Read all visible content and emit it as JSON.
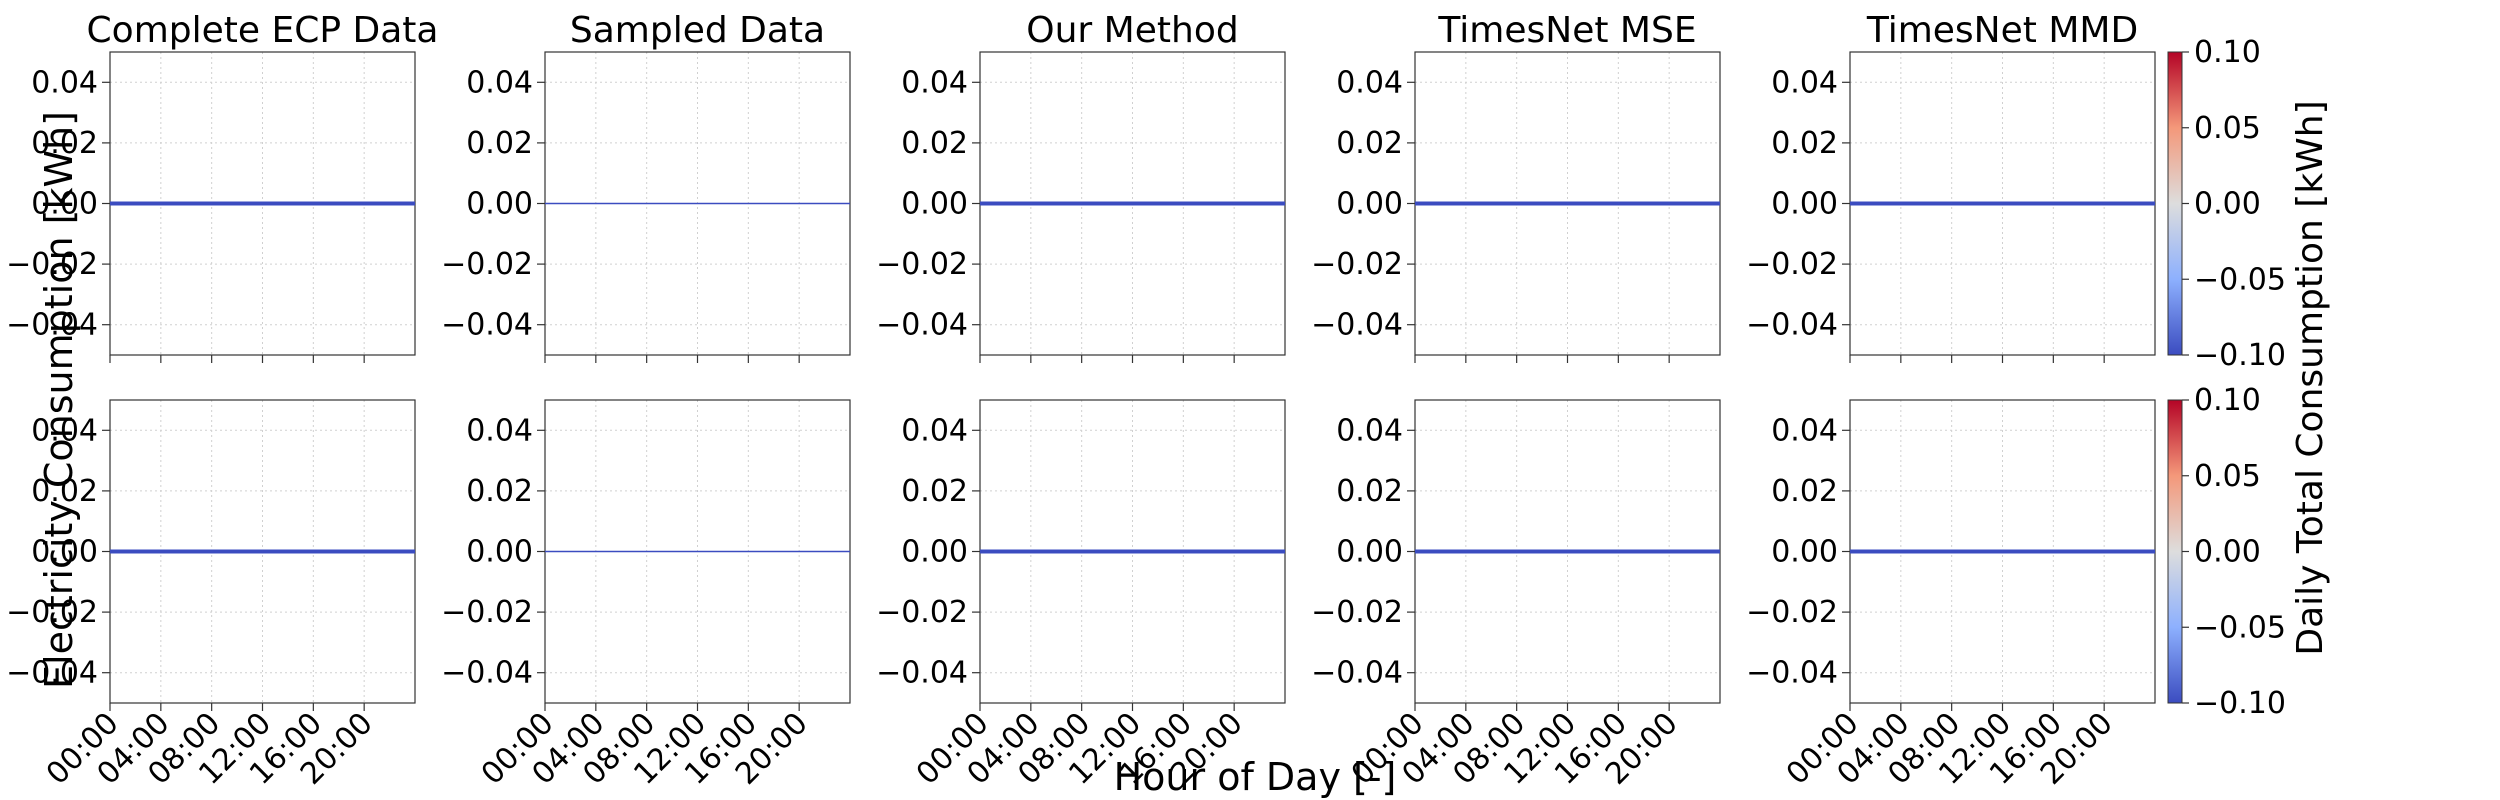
{
  "chart_data": {
    "type": "line",
    "layout": {
      "rows": 2,
      "cols": 5
    },
    "panel_titles": [
      "Complete ECP Data",
      "Sampled Data",
      "Our Method",
      "TimesNet MSE",
      "TimesNet MMD"
    ],
    "x_tick_labels": [
      "00:00",
      "04:00",
      "08:00",
      "12:00",
      "16:00",
      "20:00"
    ],
    "x_range_hours": [
      0,
      24
    ],
    "y_ticks": [
      0.04,
      0.02,
      0.0,
      -0.02,
      -0.04
    ],
    "y_tick_labels": [
      "0.04",
      "0.02",
      "0.00",
      "−0.02",
      "−0.04"
    ],
    "y_range": [
      -0.05,
      0.05
    ],
    "grid": true,
    "xlabel": "Hour of Day [-]",
    "ylabel": "Electricity Consumption [kWh]",
    "series": [
      {
        "row": 0,
        "panel": "Complete ECP Data",
        "y_value": 0.0,
        "line_width": 4
      },
      {
        "row": 0,
        "panel": "Sampled Data",
        "y_value": 0.0,
        "line_width": 1.5
      },
      {
        "row": 0,
        "panel": "Our Method",
        "y_value": 0.0,
        "line_width": 4
      },
      {
        "row": 0,
        "panel": "TimesNet MSE",
        "y_value": 0.0,
        "line_width": 4
      },
      {
        "row": 0,
        "panel": "TimesNet MMD",
        "y_value": 0.0,
        "line_width": 4
      },
      {
        "row": 1,
        "panel": "Complete ECP Data",
        "y_value": 0.0,
        "line_width": 4
      },
      {
        "row": 1,
        "panel": "Sampled Data",
        "y_value": 0.0,
        "line_width": 1.5
      },
      {
        "row": 1,
        "panel": "Our Method",
        "y_value": 0.0,
        "line_width": 4
      },
      {
        "row": 1,
        "panel": "TimesNet MSE",
        "y_value": 0.0,
        "line_width": 4
      },
      {
        "row": 1,
        "panel": "TimesNet MMD",
        "y_value": 0.0,
        "line_width": 4
      }
    ],
    "line_color": "#3b4cc0",
    "colorbar": {
      "label": "Daily Total Consumption [kWh]",
      "ticks": [
        0.1,
        0.05,
        0.0,
        -0.05,
        -0.1
      ],
      "tick_labels": [
        "0.10",
        "0.05",
        "0.00",
        "−0.05",
        "−0.10"
      ],
      "range": [
        -0.1,
        0.1
      ],
      "colormap": "coolwarm",
      "color_low": "#3b4cc0",
      "color_mid": "#dddddd",
      "color_high": "#b40426"
    }
  }
}
